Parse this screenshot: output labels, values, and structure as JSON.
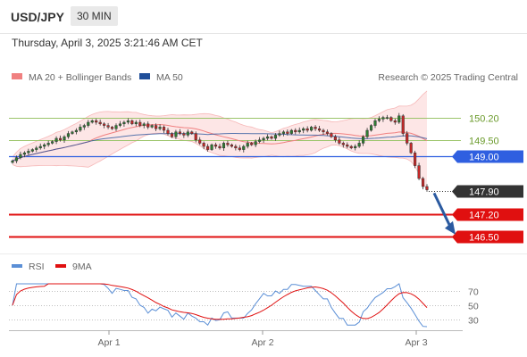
{
  "header": {
    "pair": "USD/JPY",
    "timeframe": "30 MIN",
    "datetime": "Thursday, April 3, 2025 3:21:46 AM CET"
  },
  "legend": {
    "ma20_label": "MA 20 + Bollinger Bands",
    "ma50_label": "MA 50",
    "credit": "Research © 2025 Trading Central",
    "rsi_label": "RSI",
    "ma9_label": "9MA"
  },
  "colors": {
    "bullish": "#2e7d32",
    "bearish": "#c62828",
    "ma20": "#f08080",
    "bollinger_fill": "#fde3e3",
    "ma50": "#1f4e99",
    "resistance": "#9bc46a",
    "pivot": "#2f5fe0",
    "support": "#e01010",
    "arrow": "#2b5aa0",
    "rsi": "#5b8fd6",
    "rsi_ma": "#e01010"
  },
  "chart_data": [
    {
      "type": "candlestick",
      "ylim": [
        146.3,
        150.8
      ],
      "x_ticks": [
        "Apr 1",
        "Apr 2",
        "Apr 3"
      ],
      "last_price": 147.9,
      "levels": [
        {
          "value": 150.2,
          "label": "150.20",
          "kind": "resistance"
        },
        {
          "value": 149.5,
          "label": "149.50",
          "kind": "resistance"
        },
        {
          "value": 149.0,
          "label": "149.00",
          "kind": "pivot"
        },
        {
          "value": 147.9,
          "label": "147.90",
          "kind": "last"
        },
        {
          "value": 147.2,
          "label": "147.20",
          "kind": "support"
        },
        {
          "value": 146.5,
          "label": "146.50",
          "kind": "support"
        }
      ],
      "series": [
        {
          "name": "MA 20 + Bollinger Bands"
        },
        {
          "name": "MA 50"
        }
      ],
      "close": [
        148.85,
        148.95,
        149.05,
        149.1,
        149.15,
        149.2,
        149.25,
        149.3,
        149.35,
        149.4,
        149.45,
        149.55,
        149.5,
        149.6,
        149.7,
        149.75,
        149.8,
        149.9,
        149.95,
        150.05,
        150.1,
        150.05,
        150.0,
        149.95,
        149.9,
        149.85,
        149.95,
        150.0,
        150.05,
        150.1,
        150.0,
        150.05,
        149.95,
        150.0,
        149.9,
        149.95,
        149.85,
        149.9,
        149.8,
        149.7,
        149.6,
        149.75,
        149.7,
        149.65,
        149.75,
        149.7,
        149.5,
        149.4,
        149.3,
        149.2,
        149.35,
        149.3,
        149.25,
        149.4,
        149.35,
        149.3,
        149.25,
        149.2,
        149.3,
        149.4,
        149.35,
        149.45,
        149.5,
        149.55,
        149.6,
        149.55,
        149.65,
        149.7,
        149.75,
        149.7,
        149.8,
        149.75,
        149.8,
        149.85,
        149.8,
        149.9,
        149.85,
        149.8,
        149.75,
        149.7,
        149.6,
        149.5,
        149.4,
        149.35,
        149.3,
        149.25,
        149.3,
        149.4,
        149.6,
        149.8,
        149.95,
        150.1,
        150.15,
        150.2,
        150.2,
        150.1,
        150.05,
        150.25,
        149.7,
        149.4,
        149.1,
        148.7,
        148.3,
        148.05,
        147.95
      ],
      "rsi": {
        "ylim": [
          20,
          80
        ],
        "levels": [
          70,
          50,
          30
        ]
      }
    }
  ]
}
